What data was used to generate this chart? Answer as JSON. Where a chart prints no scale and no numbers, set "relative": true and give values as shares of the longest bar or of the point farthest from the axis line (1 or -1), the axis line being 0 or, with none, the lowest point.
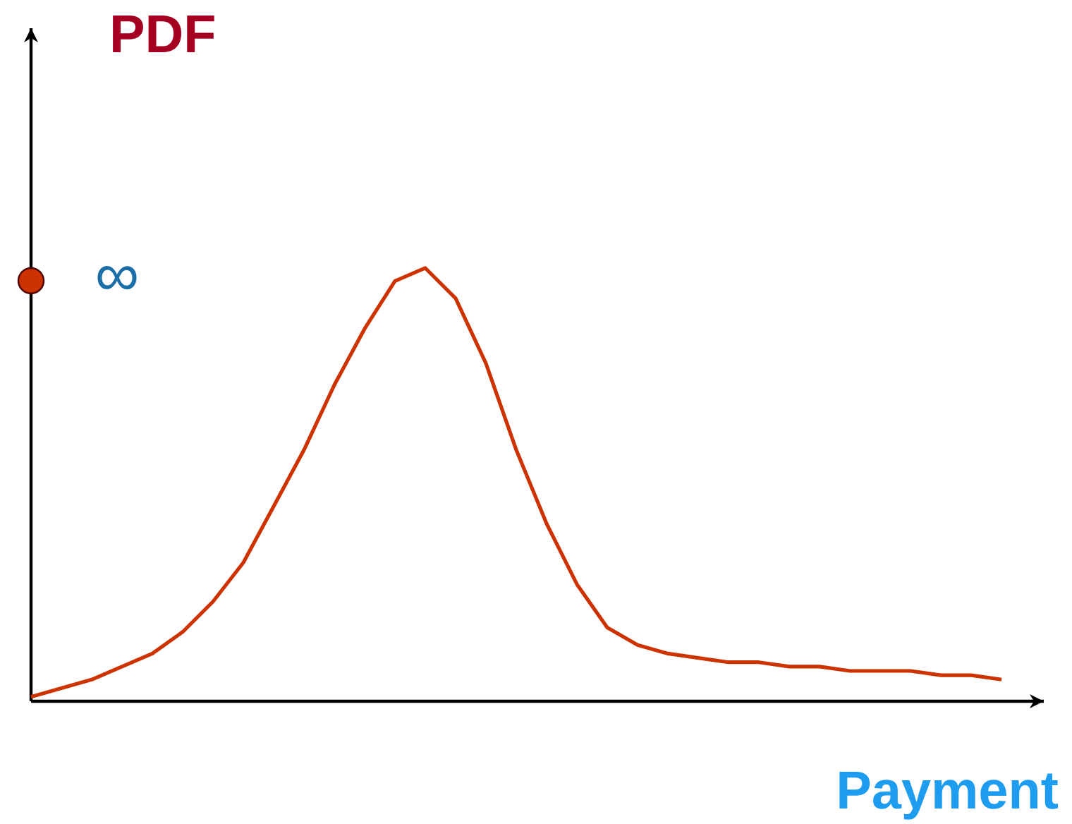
{
  "chart_data": {
    "type": "line",
    "relative": true,
    "xlabel": "Payment",
    "ylabel": "PDF",
    "categories": [
      null,
      null,
      null,
      null,
      null,
      null,
      null,
      null,
      null,
      null,
      null,
      null,
      null,
      null,
      null,
      null,
      null,
      null,
      null,
      null,
      null,
      null,
      null,
      null,
      null,
      null,
      null,
      null,
      null,
      null,
      null,
      null,
      null
    ],
    "series": [
      {
        "color": "#cc3300",
        "marker": "none",
        "values": [
          0.01,
          0.03,
          0.05,
          0.08,
          0.11,
          0.16,
          0.23,
          0.32,
          0.45,
          0.58,
          0.73,
          0.86,
          0.97,
          1.0,
          0.93,
          0.78,
          0.58,
          0.41,
          0.27,
          0.17,
          0.13,
          0.11,
          0.1,
          0.09,
          0.09,
          0.08,
          0.08,
          0.07,
          0.07,
          0.07,
          0.06,
          0.06,
          0.05
        ]
      }
    ],
    "annotations": [
      "∞"
    ]
  }
}
